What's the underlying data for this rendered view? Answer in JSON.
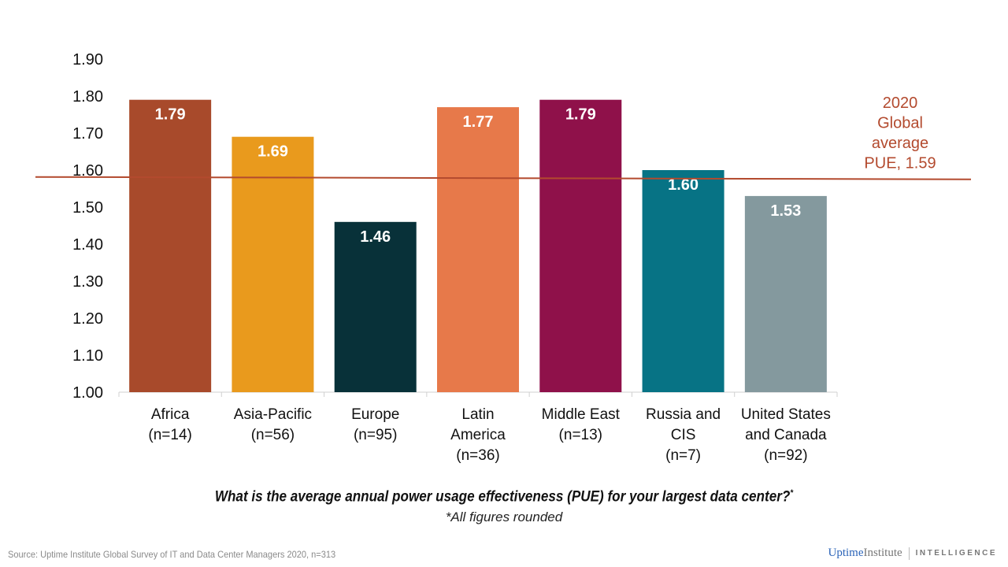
{
  "chart_data": {
    "type": "bar",
    "categories": [
      [
        "Africa",
        "(n=14)"
      ],
      [
        "Asia-Pacific",
        "(n=56)"
      ],
      [
        "Europe",
        "(n=95)"
      ],
      [
        "Latin",
        "America",
        "(n=36)"
      ],
      [
        "Middle East",
        "(n=13)"
      ],
      [
        "Russia and",
        "CIS",
        "(n=7)"
      ],
      [
        "United States",
        "and Canada",
        "(n=92)"
      ]
    ],
    "values": [
      1.79,
      1.69,
      1.46,
      1.77,
      1.79,
      1.6,
      1.53
    ],
    "value_labels": [
      "1.79",
      "1.69",
      "1.46",
      "1.77",
      "1.79",
      "1.60",
      "1.53"
    ],
    "colors": [
      "#a84a2b",
      "#e99a1d",
      "#083139",
      "#e7794a",
      "#8f114a",
      "#077385",
      "#84999e"
    ],
    "ylim": [
      1.0,
      1.9
    ],
    "yticks": [
      "1.00",
      "1.10",
      "1.20",
      "1.30",
      "1.40",
      "1.50",
      "1.60",
      "1.70",
      "1.80",
      "1.90"
    ],
    "grid": false,
    "reference_line": {
      "value": 1.59,
      "label": [
        "2020",
        "Global",
        "average",
        "PUE, 1.59"
      ],
      "color": "#b34a2e"
    },
    "xlabel": "What is the average annual power usage effectiveness (PUE) for your largest data center?",
    "xlabel_mark": "*",
    "note": "*All figures rounded"
  },
  "footer": {
    "source": "Source: Uptime Institute Global Survey of IT and Data Center Managers 2020, n=313",
    "logo_uptime": "Uptime",
    "logo_institute": "Institute",
    "logo_intelligence": "INTELLIGENCE"
  }
}
